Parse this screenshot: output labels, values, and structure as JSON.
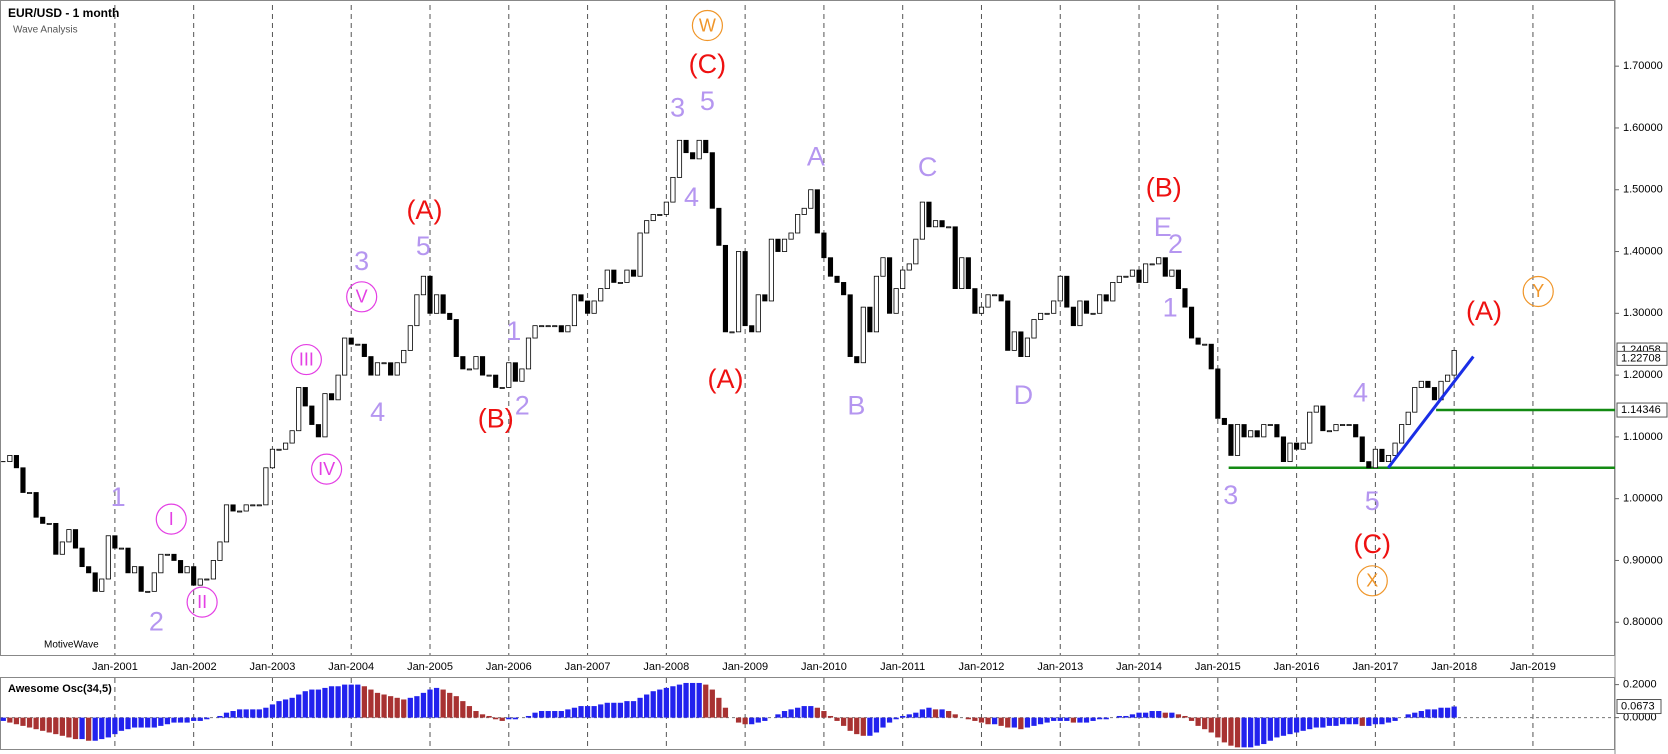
{
  "chart_data": [
    {
      "type": "candlestick",
      "title": "EUR/USD - 1 month",
      "subtitle": "Wave Analysis",
      "brand": "MotiveWave",
      "categories": [
        null,
        null,
        null,
        null,
        null,
        null,
        null,
        null,
        null,
        null,
        null,
        null,
        null,
        null,
        null,
        null,
        null,
        "Jan-2001",
        null,
        null,
        null,
        null,
        null,
        null,
        null,
        null,
        null,
        null,
        null,
        "Jan-2002",
        null,
        null,
        null,
        null,
        null,
        null,
        null,
        null,
        null,
        null,
        null,
        "Jan-2003",
        null,
        null,
        null,
        null,
        null,
        null,
        null,
        null,
        null,
        null,
        null,
        "Jan-2004",
        null,
        null,
        null,
        null,
        null,
        null,
        null,
        null,
        null,
        null,
        null,
        "Jan-2005",
        null,
        null,
        null,
        null,
        null,
        null,
        null,
        null,
        null,
        null,
        null,
        "Jan-2006",
        null,
        null,
        null,
        null,
        null,
        null,
        null,
        null,
        null,
        null,
        null,
        "Jan-2007",
        null,
        null,
        null,
        null,
        null,
        null,
        null,
        null,
        null,
        null,
        null,
        "Jan-2008",
        null,
        null,
        null,
        null,
        null,
        null,
        null,
        null,
        null,
        null,
        null,
        "Jan-2009",
        null,
        null,
        null,
        null,
        null,
        null,
        null,
        null,
        null,
        null,
        null,
        "Jan-2010",
        null,
        null,
        null,
        null,
        null,
        null,
        null,
        null,
        null,
        null,
        null,
        "Jan-2011",
        null,
        null,
        null,
        null,
        null,
        null,
        null,
        null,
        null,
        null,
        null,
        "Jan-2012",
        null,
        null,
        null,
        null,
        null,
        null,
        null,
        null,
        null,
        null,
        null,
        "Jan-2013",
        null,
        null,
        null,
        null,
        null,
        null,
        null,
        null,
        null,
        null,
        null,
        "Jan-2014",
        null,
        null,
        null,
        null,
        null,
        null,
        null,
        null,
        null,
        null,
        null,
        "Jan-2015",
        null,
        null,
        null,
        null,
        null,
        null,
        null,
        null,
        null,
        null,
        null,
        "Jan-2016",
        null,
        null,
        null,
        null,
        null,
        null,
        null,
        null,
        null,
        null,
        null,
        "Jan-2017",
        null,
        null,
        null,
        null,
        null,
        null,
        null,
        null,
        null,
        null,
        null,
        "Jan-2018",
        null,
        null,
        null,
        null,
        null,
        null,
        null,
        null,
        null,
        null,
        null,
        "Jan-2019",
        null,
        null,
        null,
        null,
        null,
        null,
        null,
        null,
        null,
        null,
        null,
        null
      ],
      "values": [
        1.06,
        1.07,
        1.05,
        1.01,
        1.01,
        0.97,
        0.96,
        0.96,
        0.91,
        0.93,
        0.95,
        0.92,
        0.89,
        0.88,
        0.85,
        0.87,
        0.94,
        0.92,
        0.92,
        0.88,
        0.89,
        0.85,
        0.85,
        0.88,
        0.91,
        0.91,
        0.9,
        0.88,
        0.89,
        0.86,
        0.87,
        0.87,
        0.9,
        0.93,
        0.99,
        0.98,
        0.98,
        0.99,
        0.99,
        0.99,
        1.05,
        1.08,
        1.08,
        1.09,
        1.11,
        1.18,
        1.15,
        1.12,
        1.1,
        1.17,
        1.16,
        1.2,
        1.26,
        1.25,
        1.25,
        1.23,
        1.2,
        1.22,
        1.22,
        1.2,
        1.22,
        1.24,
        1.28,
        1.33,
        1.36,
        1.3,
        1.33,
        1.3,
        1.29,
        1.23,
        1.21,
        1.21,
        1.23,
        1.2,
        1.2,
        1.18,
        1.18,
        1.22,
        1.19,
        1.21,
        1.26,
        1.28,
        1.28,
        1.28,
        1.28,
        1.27,
        1.28,
        1.33,
        1.32,
        1.3,
        1.32,
        1.34,
        1.37,
        1.35,
        1.35,
        1.37,
        1.36,
        1.43,
        1.45,
        1.46,
        1.46,
        1.48,
        1.52,
        1.58,
        1.56,
        1.55,
        1.58,
        1.56,
        1.47,
        1.41,
        1.27,
        1.27,
        1.4,
        1.28,
        1.27,
        1.33,
        1.32,
        1.42,
        1.4,
        1.42,
        1.43,
        1.46,
        1.47,
        1.5,
        1.43,
        1.39,
        1.36,
        1.35,
        1.33,
        1.23,
        1.22,
        1.31,
        1.27,
        1.36,
        1.39,
        1.3,
        1.34,
        1.37,
        1.38,
        1.42,
        1.48,
        1.44,
        1.45,
        1.44,
        1.44,
        1.34,
        1.39,
        1.34,
        1.3,
        1.31,
        1.33,
        1.33,
        1.32,
        1.24,
        1.27,
        1.23,
        1.26,
        1.29,
        1.3,
        1.3,
        1.32,
        1.36,
        1.31,
        1.28,
        1.32,
        1.3,
        1.3,
        1.33,
        1.32,
        1.35,
        1.36,
        1.36,
        1.37,
        1.35,
        1.38,
        1.38,
        1.39,
        1.36,
        1.37,
        1.34,
        1.31,
        1.26,
        1.25,
        1.25,
        1.21,
        1.13,
        1.12,
        1.07,
        1.12,
        1.1,
        1.11,
        1.1,
        1.12,
        1.12,
        1.1,
        1.06,
        1.09,
        1.08,
        1.09,
        1.14,
        1.15,
        1.11,
        1.11,
        1.12,
        1.12,
        1.12,
        1.1,
        1.06,
        1.05,
        1.08,
        1.06,
        1.07,
        1.09,
        1.12,
        1.14,
        1.18,
        1.19,
        1.18,
        1.16,
        1.19,
        1.2,
        1.24,
        null,
        null,
        null,
        null,
        null,
        null,
        null,
        null,
        null,
        null,
        null,
        null,
        null,
        null,
        null,
        null,
        null,
        null,
        null,
        null,
        null,
        null,
        null,
        null
      ],
      "up_color": "#ffffff",
      "down_color": "#000000",
      "ylim": [
        0.747,
        1.799
      ],
      "yticks": [
        {
          "value": 0.8,
          "label": "0.80000"
        },
        {
          "value": 0.9,
          "label": "0.90000"
        },
        {
          "value": 1.0,
          "label": "1.00000"
        },
        {
          "value": 1.1,
          "label": "1.10000"
        },
        {
          "value": 1.2,
          "label": "1.20000"
        },
        {
          "value": 1.3,
          "label": "1.30000"
        },
        {
          "value": 1.4,
          "label": "1.40000"
        },
        {
          "value": 1.5,
          "label": "1.50000"
        },
        {
          "value": 1.6,
          "label": "1.60000"
        },
        {
          "value": 1.7,
          "label": "1.70000"
        }
      ],
      "x_grid": true,
      "levels": [
        {
          "value": 1.14346,
          "color": "#138a13"
        },
        {
          "value": 1.05,
          "color": "#138a13"
        }
      ],
      "price_markers": [
        1.24058,
        1.22708
      ],
      "trendline": {
        "values": [
          1.05,
          1.23
        ],
        "color": "#1a2ee6"
      },
      "wave_labels": [
        {
          "text": "1",
          "color": "#b596f0",
          "circled": false
        },
        {
          "text": "2",
          "color": "#b596f0",
          "circled": false
        },
        {
          "text": "3",
          "color": "#b596f0",
          "circled": false
        },
        {
          "text": "5",
          "color": "#b596f0",
          "circled": false
        },
        {
          "text": "4",
          "color": "#b596f0",
          "circled": false
        },
        {
          "text": "1",
          "color": "#b596f0",
          "circled": false
        },
        {
          "text": "2",
          "color": "#b596f0",
          "circled": false
        },
        {
          "text": "3",
          "color": "#b596f0",
          "circled": false
        },
        {
          "text": "5",
          "color": "#b596f0",
          "circled": false
        },
        {
          "text": "4",
          "color": "#b596f0",
          "circled": false
        },
        {
          "text": "A",
          "color": "#b596f0",
          "circled": false
        },
        {
          "text": "B",
          "color": "#b596f0",
          "circled": false
        },
        {
          "text": "C",
          "color": "#b596f0",
          "circled": false
        },
        {
          "text": "D",
          "color": "#b596f0",
          "circled": false
        },
        {
          "text": "E",
          "color": "#b596f0",
          "circled": false
        },
        {
          "text": "2",
          "color": "#b596f0",
          "circled": false
        },
        {
          "text": "1",
          "color": "#b596f0",
          "circled": false
        },
        {
          "text": "3",
          "color": "#b596f0",
          "circled": false
        },
        {
          "text": "4",
          "color": "#b596f0",
          "circled": false
        },
        {
          "text": "5",
          "color": "#b596f0",
          "circled": false
        },
        {
          "text": "I",
          "color": "#e43fe4",
          "circled": true
        },
        {
          "text": "II",
          "color": "#e43fe4",
          "circled": true
        },
        {
          "text": "III",
          "color": "#e43fe4",
          "circled": true
        },
        {
          "text": "IV",
          "color": "#e43fe4",
          "circled": true
        },
        {
          "text": "V",
          "color": "#e43fe4",
          "circled": true
        },
        {
          "text": "(A)",
          "color": "#ee1111",
          "circled": false
        },
        {
          "text": "(B)",
          "color": "#ee1111",
          "circled": false
        },
        {
          "text": "(C)",
          "color": "#ee1111",
          "circled": false
        },
        {
          "text": "(A)",
          "color": "#ee1111",
          "circled": false
        },
        {
          "text": "(B)",
          "color": "#ee1111",
          "circled": false
        },
        {
          "text": "(C)",
          "color": "#ee1111",
          "circled": false
        },
        {
          "text": "(A)",
          "color": "#ee1111",
          "circled": false
        },
        {
          "text": "W",
          "color": "#f0962a",
          "circled": true
        },
        {
          "text": "X",
          "color": "#f0962a",
          "circled": true
        },
        {
          "text": "Y",
          "color": "#f0962a",
          "circled": true
        }
      ]
    },
    {
      "type": "bar",
      "title": "Awesome Osc(34,5)",
      "values": [
        -0.02,
        -0.03,
        -0.04,
        -0.05,
        -0.06,
        -0.07,
        -0.08,
        -0.09,
        -0.1,
        -0.11,
        -0.12,
        -0.13,
        -0.13,
        -0.14,
        -0.14,
        -0.13,
        -0.12,
        -0.1,
        -0.08,
        -0.07,
        -0.06,
        -0.06,
        -0.06,
        -0.06,
        -0.05,
        -0.04,
        -0.03,
        -0.03,
        -0.03,
        -0.02,
        -0.02,
        -0.01,
        0.0,
        0.01,
        0.03,
        0.04,
        0.05,
        0.05,
        0.05,
        0.05,
        0.06,
        0.08,
        0.1,
        0.11,
        0.12,
        0.14,
        0.16,
        0.17,
        0.17,
        0.18,
        0.19,
        0.19,
        0.2,
        0.2,
        0.2,
        0.19,
        0.17,
        0.15,
        0.14,
        0.13,
        0.12,
        0.11,
        0.12,
        0.13,
        0.15,
        0.17,
        0.18,
        0.17,
        0.15,
        0.13,
        0.1,
        0.07,
        0.04,
        0.02,
        0.01,
        -0.01,
        -0.02,
        -0.01,
        -0.01,
        0.0,
        0.01,
        0.03,
        0.04,
        0.04,
        0.04,
        0.04,
        0.05,
        0.06,
        0.07,
        0.07,
        0.07,
        0.08,
        0.09,
        0.09,
        0.09,
        0.1,
        0.1,
        0.12,
        0.14,
        0.16,
        0.17,
        0.18,
        0.19,
        0.2,
        0.21,
        0.21,
        0.21,
        0.2,
        0.17,
        0.12,
        0.06,
        0.0,
        -0.03,
        -0.04,
        -0.04,
        -0.03,
        -0.02,
        0.0,
        0.02,
        0.04,
        0.05,
        0.06,
        0.07,
        0.07,
        0.06,
        0.04,
        0.01,
        -0.02,
        -0.05,
        -0.08,
        -0.1,
        -0.11,
        -0.11,
        -0.09,
        -0.06,
        -0.03,
        -0.01,
        0.01,
        0.02,
        0.03,
        0.05,
        0.06,
        0.05,
        0.05,
        0.04,
        0.02,
        0.0,
        -0.01,
        -0.02,
        -0.03,
        -0.04,
        -0.04,
        -0.05,
        -0.06,
        -0.06,
        -0.07,
        -0.06,
        -0.05,
        -0.04,
        -0.03,
        -0.02,
        -0.02,
        -0.02,
        -0.03,
        -0.03,
        -0.03,
        -0.02,
        -0.01,
        -0.01,
        0.0,
        0.01,
        0.01,
        0.02,
        0.03,
        0.03,
        0.04,
        0.04,
        0.03,
        0.03,
        0.02,
        0.01,
        -0.02,
        -0.05,
        -0.07,
        -0.09,
        -0.12,
        -0.15,
        -0.17,
        -0.18,
        -0.18,
        -0.18,
        -0.17,
        -0.16,
        -0.14,
        -0.12,
        -0.11,
        -0.1,
        -0.09,
        -0.08,
        -0.07,
        -0.06,
        -0.06,
        -0.05,
        -0.05,
        -0.04,
        -0.04,
        -0.04,
        -0.05,
        -0.05,
        -0.04,
        -0.04,
        -0.03,
        -0.02,
        0.0,
        0.02,
        0.03,
        0.04,
        0.05,
        0.05,
        0.06,
        0.06,
        0.0673
      ],
      "up_color": "#2222ee",
      "down_color": "#a83232",
      "ylim": [
        -0.19,
        0.24
      ],
      "yticks": [
        {
          "value": 0.2,
          "label": "0.2000"
        },
        {
          "value": 0,
          "label": "0.0000"
        }
      ],
      "current": {
        "value": 0.0673,
        "label": "0.0673"
      }
    }
  ]
}
